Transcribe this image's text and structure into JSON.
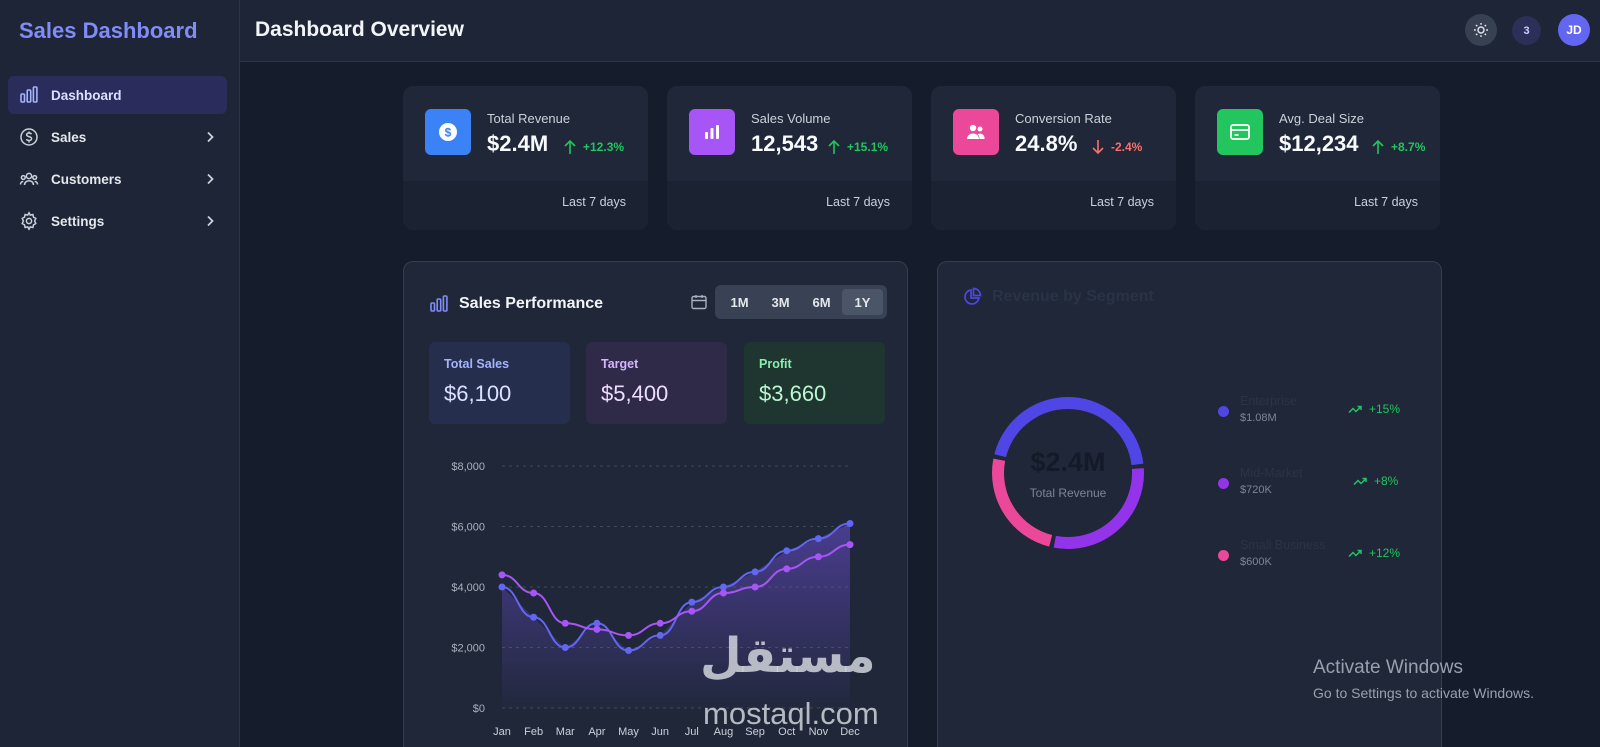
{
  "app": {
    "brand": "Sales Dashboard",
    "page_title": "Dashboard Overview"
  },
  "sidebar": {
    "items": [
      {
        "label": "Dashboard",
        "icon": "bar-chart-icon",
        "active": true
      },
      {
        "label": "Sales",
        "icon": "dollar-circle-icon"
      },
      {
        "label": "Customers",
        "icon": "users-icon"
      },
      {
        "label": "Settings",
        "icon": "gear-icon"
      }
    ]
  },
  "header": {
    "notification_count": "3",
    "avatar_initials": "JD"
  },
  "stats": [
    {
      "label": "Total Revenue",
      "value": "$2.4M",
      "change": "+12.3%",
      "trend": "up",
      "period": "Last 7 days",
      "color": "#3b82f6",
      "icon": "dollar-circle-icon"
    },
    {
      "label": "Sales Volume",
      "value": "12,543",
      "change": "+15.1%",
      "trend": "up",
      "period": "Last 7 days",
      "color": "#a855f7",
      "icon": "bar-chart-icon"
    },
    {
      "label": "Conversion Rate",
      "value": "24.8%",
      "change": "-2.4%",
      "trend": "down",
      "period": "Last 7 days",
      "color": "#ec4899",
      "icon": "users-icon"
    },
    {
      "label": "Avg. Deal Size",
      "value": "$12,234",
      "change": "+8.7%",
      "trend": "up",
      "period": "Last 7 days",
      "color": "#22c55e",
      "icon": "credit-card-icon"
    }
  ],
  "performance": {
    "title": "Sales Performance",
    "ranges": [
      "1M",
      "3M",
      "6M",
      "1Y"
    ],
    "active_range": "1Y",
    "metrics": {
      "total_sales": {
        "label": "Total Sales",
        "value": "$6,100"
      },
      "target": {
        "label": "Target",
        "value": "$5,400"
      },
      "profit": {
        "label": "Profit",
        "value": "$3,660"
      }
    }
  },
  "segment": {
    "title": "Revenue by Segment",
    "center_value": "$2.4M",
    "center_label": "Total Revenue",
    "items": [
      {
        "name": "Enterprise",
        "amount": "$1.08M",
        "growth": "+15%",
        "color": "#4f46e5"
      },
      {
        "name": "Mid-Market",
        "amount": "$720K",
        "growth": "+8%",
        "color": "#9333ea"
      },
      {
        "name": "Small Business",
        "amount": "$600K",
        "growth": "+12%",
        "color": "#ec4899"
      }
    ]
  },
  "chart_data": [
    {
      "type": "line",
      "categories": [
        "Jan",
        "Feb",
        "Mar",
        "Apr",
        "May",
        "Jun",
        "Jul",
        "Aug",
        "Sep",
        "Oct",
        "Nov",
        "Dec"
      ],
      "series": [
        {
          "values": [
            4000,
            3000,
            2000,
            2800,
            1900,
            2400,
            3500,
            4000,
            4500,
            5200,
            5600,
            6100
          ],
          "color": "#6366f1"
        },
        {
          "values": [
            4400,
            3800,
            2800,
            2600,
            2400,
            2800,
            3200,
            3800,
            4000,
            4600,
            5000,
            5400
          ],
          "color": "#a855f7"
        }
      ],
      "yticks": [
        "$0",
        "$2,000",
        "$4,000",
        "$6,000",
        "$8,000"
      ],
      "ylim": [
        0,
        8000
      ],
      "grid": true
    },
    {
      "type": "pie",
      "categories": [
        "Enterprise",
        "Mid-Market",
        "Small Business"
      ],
      "values": [
        1.08,
        0.72,
        0.6
      ],
      "colors": [
        "#4f46e5",
        "#9333ea",
        "#ec4899"
      ]
    }
  ],
  "watermark": {
    "arabic": "مستقل",
    "latin": "mostaql.com"
  },
  "os_overlay": {
    "line1": "Activate Windows",
    "line2": "Go to Settings to activate Windows."
  }
}
